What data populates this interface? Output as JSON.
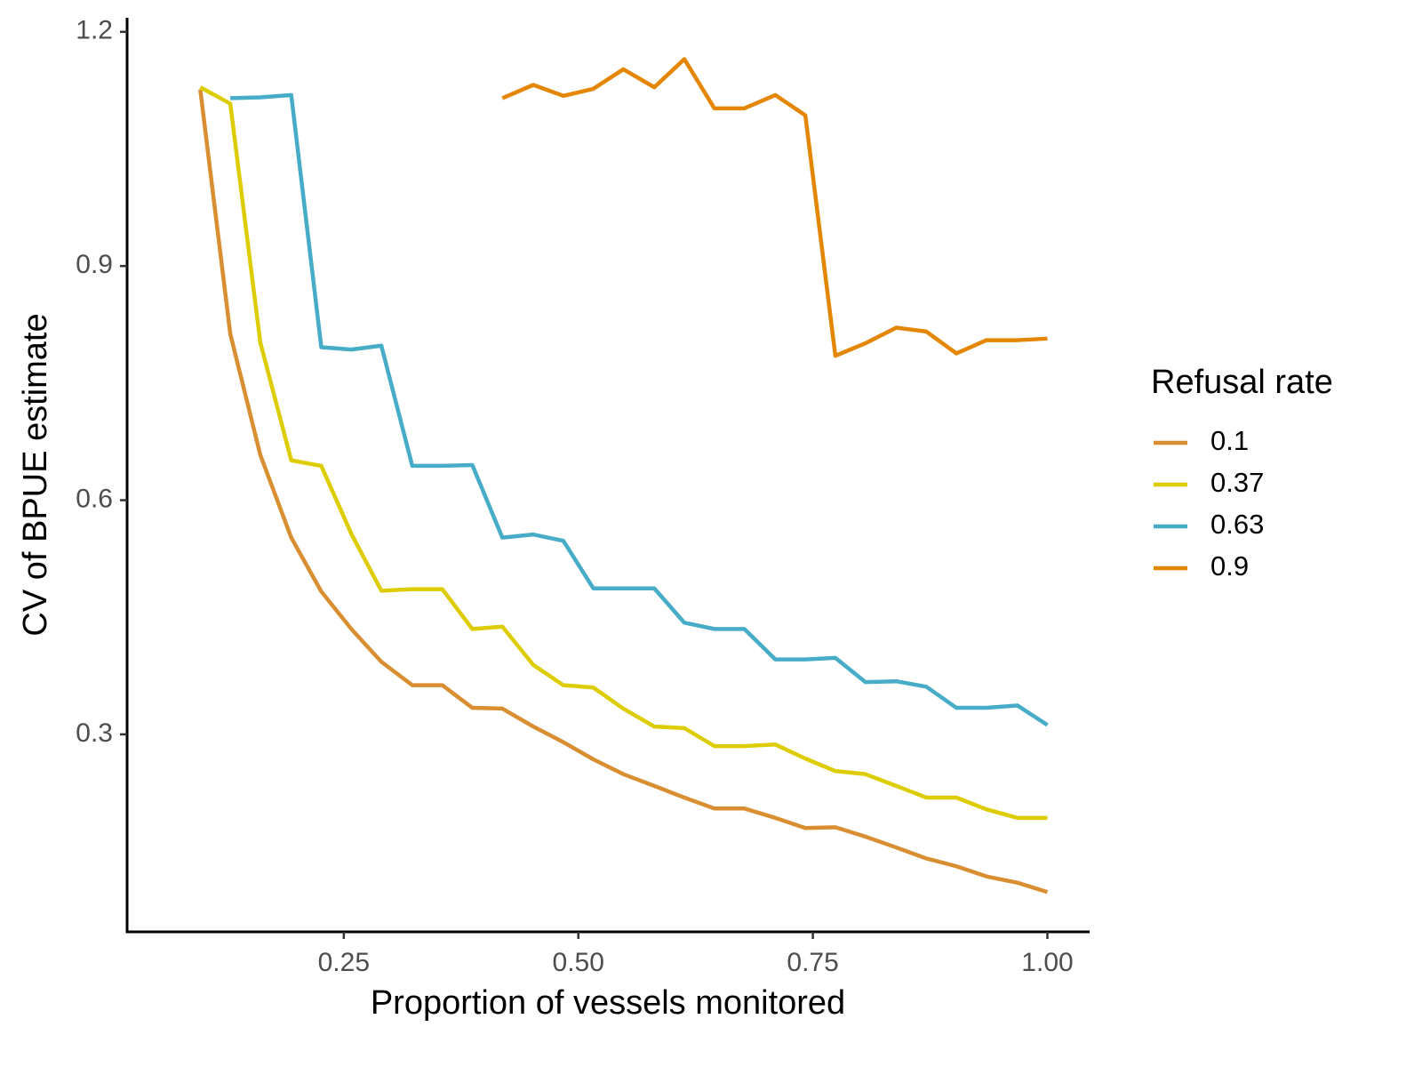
{
  "chart_data": {
    "type": "line",
    "xlabel": "Proportion of vessels monitored",
    "ylabel": "CV of BPUE estimate",
    "legend_title": "Refusal rate",
    "legend_position": "right",
    "grid": false,
    "x": [
      0.097,
      0.129,
      0.161,
      0.194,
      0.226,
      0.258,
      0.29,
      0.323,
      0.355,
      0.387,
      0.419,
      0.452,
      0.484,
      0.516,
      0.548,
      0.581,
      0.613,
      0.645,
      0.677,
      0.71,
      0.742,
      0.774,
      0.806,
      0.839,
      0.871,
      0.903,
      0.935,
      0.968,
      1.0
    ],
    "xlim": [
      0.019,
      1.045
    ],
    "xticks": [
      {
        "value": 0.25,
        "label": "0.25"
      },
      {
        "value": 0.5,
        "label": "0.50"
      },
      {
        "value": 0.75,
        "label": "0.75"
      },
      {
        "value": 1.0,
        "label": "1.00"
      }
    ],
    "ylim": [
      0.047,
      1.218
    ],
    "yticks": [
      0.3,
      0.6,
      0.9,
      1.2
    ],
    "series": [
      {
        "name": "0.1",
        "color": "#D98E32",
        "values": [
          1.126,
          0.813,
          0.658,
          0.552,
          0.483,
          0.435,
          0.393,
          0.363,
          0.363,
          0.334,
          0.333,
          0.31,
          0.29,
          0.268,
          0.249,
          0.234,
          0.219,
          0.205,
          0.205,
          0.193,
          0.18,
          0.181,
          0.169,
          0.155,
          0.141,
          0.131,
          0.118,
          0.11,
          0.098
        ]
      },
      {
        "name": "0.37",
        "color": "#DDCC00",
        "values": [
          1.129,
          1.108,
          0.802,
          0.651,
          0.644,
          0.557,
          0.484,
          0.486,
          0.486,
          0.435,
          0.438,
          0.389,
          0.363,
          0.36,
          0.333,
          0.31,
          0.308,
          0.285,
          0.285,
          0.287,
          0.269,
          0.253,
          0.249,
          0.234,
          0.219,
          0.219,
          0.204,
          0.193,
          0.193
        ]
      },
      {
        "name": "0.63",
        "color": "#46ACC8",
        "values": [
          null,
          1.115,
          1.116,
          1.119,
          0.796,
          0.793,
          0.798,
          0.644,
          0.644,
          0.645,
          0.552,
          0.556,
          0.548,
          0.487,
          0.487,
          0.487,
          0.443,
          0.435,
          0.435,
          0.396,
          0.396,
          0.398,
          0.367,
          0.368,
          0.361,
          0.334,
          0.334,
          0.337,
          0.312
        ]
      },
      {
        "name": "0.9",
        "color": "#E58601",
        "values": [
          null,
          null,
          null,
          null,
          null,
          null,
          null,
          null,
          null,
          null,
          1.115,
          1.132,
          1.118,
          1.127,
          1.152,
          1.129,
          1.165,
          1.102,
          1.102,
          1.119,
          1.093,
          0.785,
          0.801,
          0.821,
          0.816,
          0.788,
          0.805,
          0.805,
          0.807
        ]
      }
    ]
  }
}
